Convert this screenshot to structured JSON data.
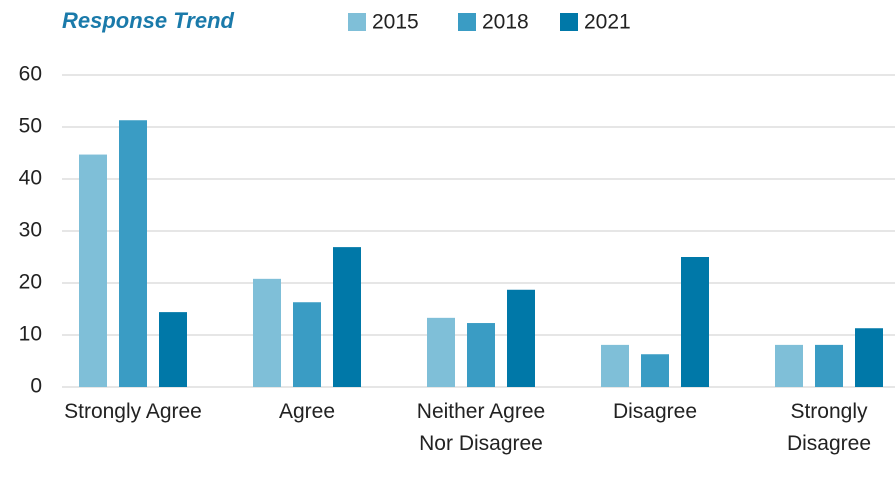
{
  "chart_data": {
    "type": "bar",
    "title": "Response Trend",
    "categories": [
      "Strongly Agree",
      "Agree",
      "Neither Agree Nor Disagree",
      "Disagree",
      "Strongly Disagree"
    ],
    "series": [
      {
        "name": "2015",
        "color": "#7fbfd8",
        "values": [
          44.7,
          20.8,
          13.3,
          8.1,
          8.1
        ]
      },
      {
        "name": "2018",
        "color": "#3a9cc4",
        "values": [
          51.3,
          16.3,
          12.3,
          6.3,
          8.1
        ]
      },
      {
        "name": "2021",
        "color": "#0078a8",
        "values": [
          14.4,
          26.9,
          18.7,
          25.0,
          11.3
        ]
      }
    ],
    "ylim": [
      0,
      60
    ],
    "yticks": [
      0,
      10,
      20,
      30,
      40,
      50,
      60
    ],
    "grid": true
  }
}
